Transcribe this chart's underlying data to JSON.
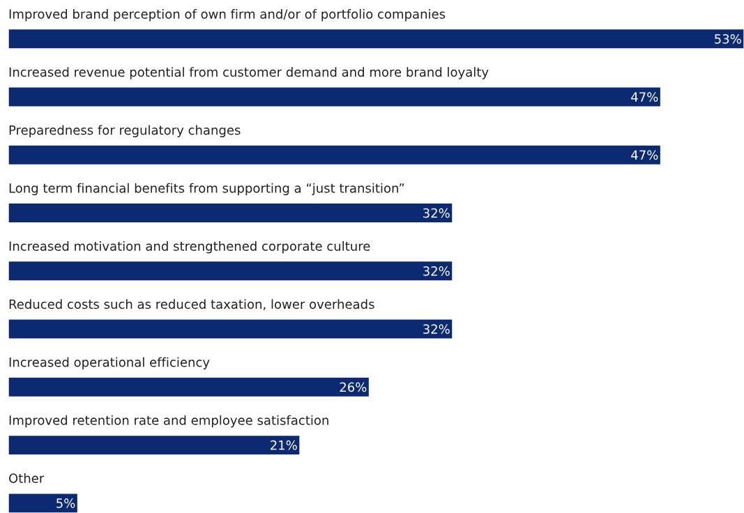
{
  "chart_data": {
    "type": "bar",
    "orientation": "horizontal",
    "categories": [
      "Improved brand perception of own firm and/or of portfolio companies",
      "Increased revenue potential from customer demand and more brand loyalty",
      "Preparedness for regulatory changes",
      "Long term financial benefits from supporting a “just transition”",
      "Increased motivation and strengthened corporate culture",
      "Reduced costs such as reduced taxation, lower overheads",
      "Increased operational efficiency",
      "Improved retention rate and employee satisfaction",
      "Other"
    ],
    "values": [
      53,
      47,
      47,
      32,
      32,
      32,
      26,
      21,
      5
    ],
    "value_labels": [
      "53%",
      "47%",
      "47%",
      "32%",
      "32%",
      "32%",
      "26%",
      "21%",
      "5%"
    ],
    "color": "#0b2a72",
    "legend": false
  }
}
